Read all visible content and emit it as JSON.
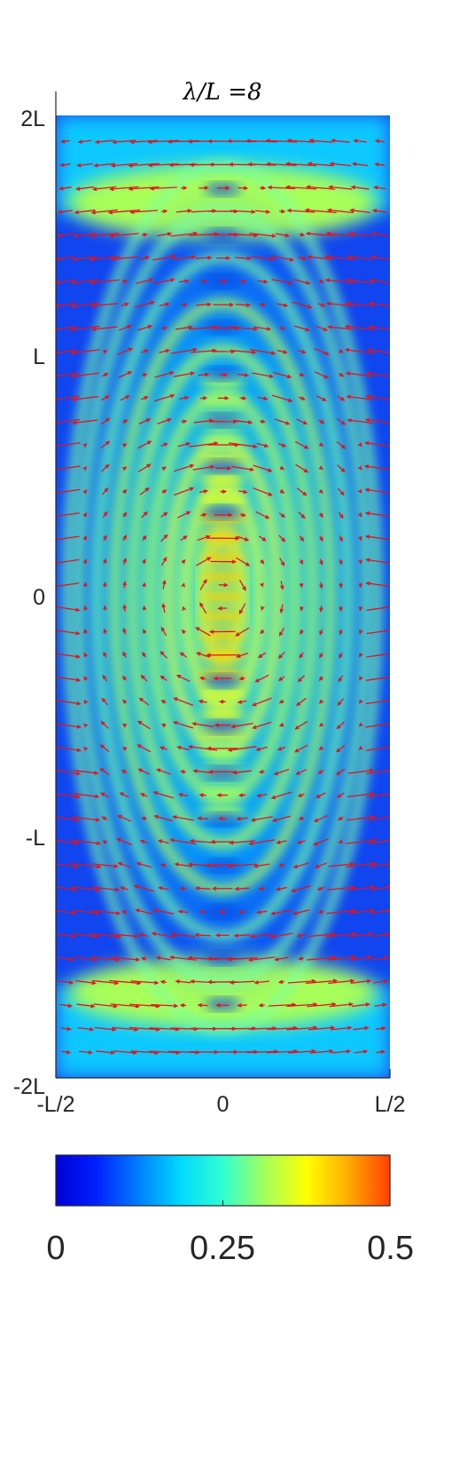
{
  "chart_data": {
    "type": "heatmap",
    "title": "λ/L =8",
    "x_ticks": [
      "-L/2",
      "0",
      "L/2"
    ],
    "y_ticks": [
      "2L",
      "L",
      "0",
      "-L",
      "-2L"
    ],
    "xlim": [
      -0.5,
      0.5
    ],
    "ylim": [
      -2,
      2
    ],
    "colorbar": {
      "ticks": [
        "0",
        "0.25",
        "0.5"
      ],
      "range": [
        0,
        0.5
      ],
      "colormap": "jet"
    },
    "overlay": {
      "type": "quiver",
      "color": "#e0141e",
      "grid": {
        "columns": 17,
        "rows": 40
      }
    }
  }
}
